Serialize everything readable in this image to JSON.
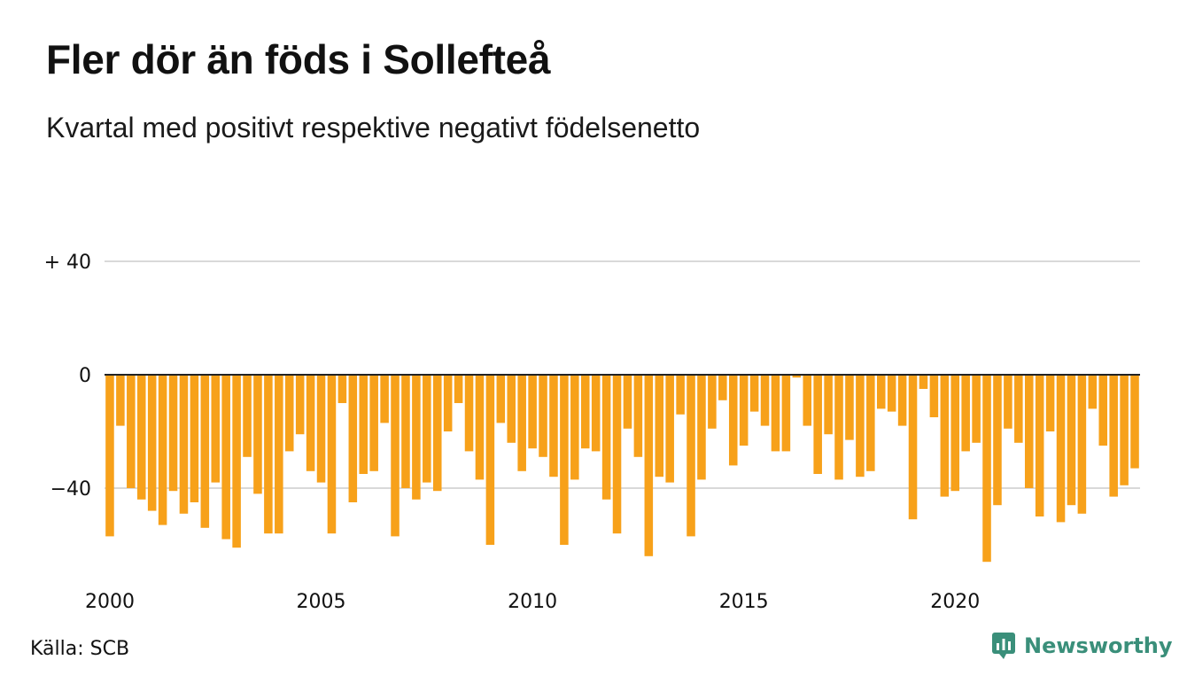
{
  "header": {
    "title": "Fler dör än föds i Sollefteå",
    "subtitle": "Kvartal med positivt respektive negativt födelsenetto"
  },
  "footer": {
    "source": "Källa: SCB",
    "brand": "Newsworthy",
    "brand_icon": "newsworthy-logo-icon",
    "brand_color": "#3a8f7a"
  },
  "chart_data": {
    "type": "bar",
    "title": "Fler dör än föds i Sollefteå",
    "subtitle": "Kvartal med positivt respektive negativt födelsenetto",
    "bar_color": "#f7a11a",
    "ylim": [
      -70,
      40
    ],
    "yticks": [
      {
        "value": 40,
        "label": "+ 40"
      },
      {
        "value": 0,
        "label": "0"
      },
      {
        "value": -40,
        "label": "−40"
      }
    ],
    "xticks": [
      {
        "year": 2000,
        "label": "2000"
      },
      {
        "year": 2005,
        "label": "2005"
      },
      {
        "year": 2010,
        "label": "2010"
      },
      {
        "year": 2015,
        "label": "2015"
      },
      {
        "year": 2020,
        "label": "2020"
      }
    ],
    "start_year": 2000,
    "values": [
      -57,
      -18,
      -40,
      -44,
      -48,
      -53,
      -41,
      -49,
      -45,
      -54,
      -38,
      -58,
      -61,
      -29,
      -42,
      -56,
      -56,
      -27,
      -21,
      -34,
      -38,
      -56,
      -10,
      -45,
      -35,
      -34,
      -17,
      -57,
      -40,
      -44,
      -38,
      -41,
      -20,
      -10,
      -27,
      -37,
      -60,
      -17,
      -24,
      -34,
      -26,
      -29,
      -36,
      -60,
      -37,
      -26,
      -27,
      -44,
      -56,
      -19,
      -29,
      -64,
      -36,
      -38,
      -14,
      -57,
      -37,
      -19,
      -9,
      -32,
      -25,
      -13,
      -18,
      -27,
      -27,
      -1,
      -18,
      -35,
      -21,
      -37,
      -23,
      -36,
      -34,
      -12,
      -13,
      -18,
      -51,
      -5,
      -15,
      -43,
      -41,
      -27,
      -24,
      -66,
      -46,
      -19,
      -24,
      -40,
      -50,
      -20,
      -52,
      -46,
      -49,
      -12,
      -25,
      -43,
      -39,
      -33
    ]
  }
}
